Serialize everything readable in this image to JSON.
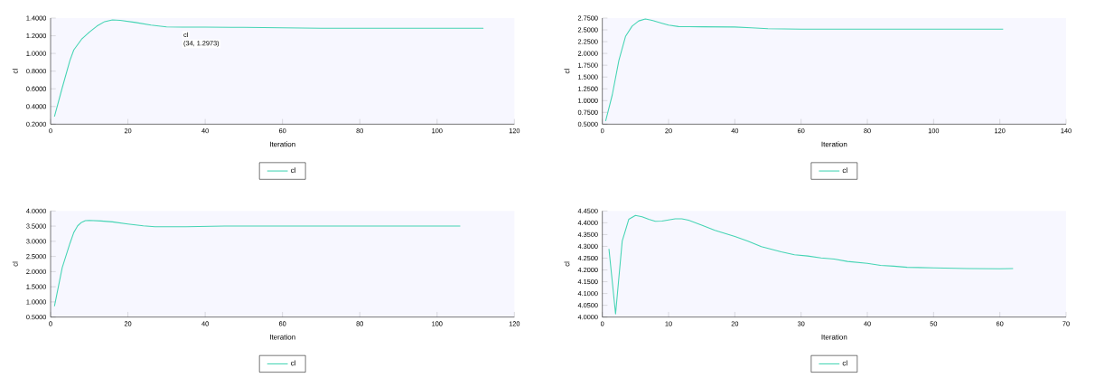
{
  "chart_data": [
    {
      "type": "line",
      "xlabel": "Iteration",
      "ylabel": "cl",
      "legend": "bottom",
      "xlim": [
        0,
        120
      ],
      "xticks": [
        0,
        20,
        40,
        60,
        80,
        100,
        120
      ],
      "ylim": [
        0.2,
        1.4
      ],
      "yticks": [
        {
          "value": 0.2,
          "label": "0.2000"
        },
        {
          "value": 0.4,
          "label": "0.4000"
        },
        {
          "value": 0.6,
          "label": "0.6000"
        },
        {
          "value": 0.8,
          "label": "0.8000"
        },
        {
          "value": 1.0,
          "label": "1.0000"
        },
        {
          "value": 1.2,
          "label": "1.2000"
        },
        {
          "value": 1.4,
          "label": "1.4000"
        }
      ],
      "annotations": [
        {
          "text": "cl",
          "x": 34,
          "y": 1.2973
        },
        {
          "text": "(34, 1.2973)",
          "x": 34,
          "y": 1.2973
        }
      ],
      "series": [
        {
          "name": "cl",
          "color": "#45d4b4",
          "x": [
            1,
            3,
            5,
            6,
            8,
            10,
            12,
            14,
            16,
            18,
            22,
            26,
            30,
            34,
            40,
            50,
            60,
            70,
            80,
            112
          ],
          "values": [
            0.287,
            0.61,
            0.92,
            1.04,
            1.16,
            1.24,
            1.31,
            1.36,
            1.38,
            1.375,
            1.35,
            1.32,
            1.3,
            1.2973,
            1.297,
            1.295,
            1.29,
            1.285,
            1.285,
            1.284
          ]
        }
      ]
    },
    {
      "type": "line",
      "xlabel": "Iteration",
      "ylabel": "cl",
      "legend": "bottom",
      "xlim": [
        0,
        140
      ],
      "xticks": [
        0,
        20,
        40,
        60,
        80,
        100,
        120,
        140
      ],
      "ylim": [
        0.5,
        2.75
      ],
      "yticks": [
        {
          "value": 0.5,
          "label": "0.5000"
        },
        {
          "value": 0.75,
          "label": "0.7500"
        },
        {
          "value": 1.0,
          "label": "1.0000"
        },
        {
          "value": 1.25,
          "label": "1.2500"
        },
        {
          "value": 1.5,
          "label": "1.5000"
        },
        {
          "value": 1.75,
          "label": "1.7500"
        },
        {
          "value": 2.0,
          "label": "2.0000"
        },
        {
          "value": 2.25,
          "label": "2.2500"
        },
        {
          "value": 2.5,
          "label": "2.5000"
        },
        {
          "value": 2.75,
          "label": "2.7500"
        }
      ],
      "series": [
        {
          "name": "cl",
          "color": "#45d4b4",
          "x": [
            1,
            3,
            5,
            7,
            9,
            11,
            13,
            15,
            18,
            20,
            23,
            30,
            40,
            45,
            50,
            60,
            80,
            121
          ],
          "values": [
            0.567,
            1.12,
            1.85,
            2.36,
            2.58,
            2.69,
            2.73,
            2.7,
            2.64,
            2.6,
            2.57,
            2.565,
            2.56,
            2.545,
            2.525,
            2.515,
            2.515,
            2.515
          ]
        }
      ]
    },
    {
      "type": "line",
      "xlabel": "Iteration",
      "ylabel": "cl",
      "legend": "bottom",
      "xlim": [
        0,
        120
      ],
      "xticks": [
        0,
        20,
        40,
        60,
        80,
        100,
        120
      ],
      "ylim": [
        0.5,
        4.0
      ],
      "yticks": [
        {
          "value": 0.5,
          "label": "0.5000"
        },
        {
          "value": 1.0,
          "label": "1.0000"
        },
        {
          "value": 1.5,
          "label": "1.5000"
        },
        {
          "value": 2.0,
          "label": "2.0000"
        },
        {
          "value": 2.5,
          "label": "2.5000"
        },
        {
          "value": 3.0,
          "label": "3.0000"
        },
        {
          "value": 3.5,
          "label": "3.5000"
        },
        {
          "value": 4.0,
          "label": "4.0000"
        }
      ],
      "series": [
        {
          "name": "cl",
          "color": "#45d4b4",
          "x": [
            1,
            3,
            5,
            6,
            7,
            8,
            9,
            10,
            13,
            16,
            20,
            24,
            27,
            35,
            45,
            106
          ],
          "values": [
            0.857,
            2.125,
            2.93,
            3.29,
            3.51,
            3.625,
            3.68,
            3.69,
            3.67,
            3.64,
            3.57,
            3.51,
            3.48,
            3.48,
            3.5,
            3.5
          ]
        }
      ]
    },
    {
      "type": "line",
      "xlabel": "Iteration",
      "ylabel": "cl",
      "legend": "bottom",
      "xlim": [
        0,
        70
      ],
      "xticks": [
        0,
        10,
        20,
        30,
        40,
        50,
        60,
        70
      ],
      "ylim": [
        4.0,
        4.45
      ],
      "yticks": [
        {
          "value": 4.0,
          "label": "4.0000"
        },
        {
          "value": 4.05,
          "label": "4.0500"
        },
        {
          "value": 4.1,
          "label": "4.1000"
        },
        {
          "value": 4.15,
          "label": "4.1500"
        },
        {
          "value": 4.2,
          "label": "4.2000"
        },
        {
          "value": 4.25,
          "label": "4.2500"
        },
        {
          "value": 4.3,
          "label": "4.3000"
        },
        {
          "value": 4.35,
          "label": "4.3500"
        },
        {
          "value": 4.4,
          "label": "4.4000"
        },
        {
          "value": 4.45,
          "label": "4.4500"
        }
      ],
      "series": [
        {
          "name": "cl",
          "color": "#45d4b4",
          "x": [
            1,
            2,
            3,
            4,
            5,
            6,
            7,
            8,
            9,
            10,
            11,
            12,
            13,
            15,
            17,
            20,
            22,
            24,
            27,
            29,
            31,
            33,
            35,
            37,
            40,
            42,
            44,
            46,
            50,
            55,
            60,
            62
          ],
          "values": [
            4.289,
            4.013,
            4.322,
            4.415,
            4.431,
            4.425,
            4.415,
            4.406,
            4.407,
            4.412,
            4.417,
            4.417,
            4.411,
            4.39,
            4.368,
            4.342,
            4.322,
            4.299,
            4.277,
            4.264,
            4.259,
            4.251,
            4.246,
            4.236,
            4.228,
            4.219,
            4.216,
            4.211,
            4.209,
            4.206,
            4.205,
            4.206
          ]
        }
      ]
    }
  ]
}
